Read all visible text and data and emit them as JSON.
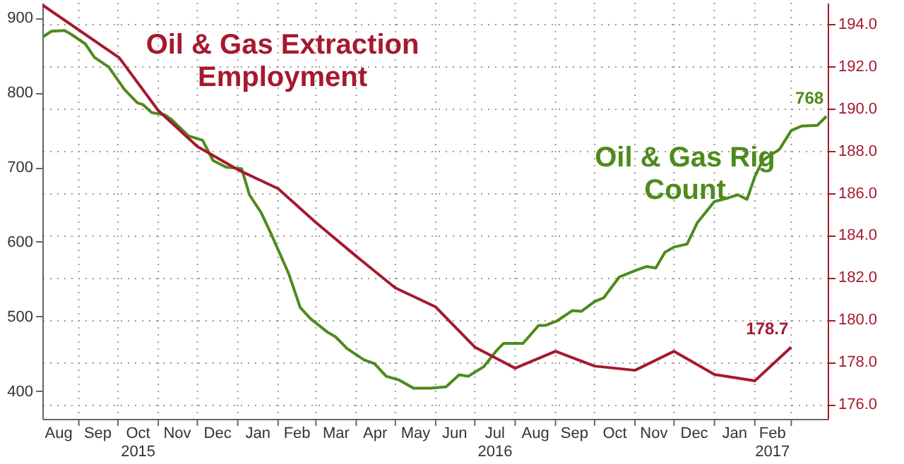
{
  "chart_data": {
    "type": "line",
    "grid": true,
    "xlim": [
      "2015-08-04",
      "2017-03-29"
    ],
    "xticks": [
      {
        "value": "2015-08-16",
        "label": "Aug"
      },
      {
        "value": "2015-09-01",
        "label": null
      },
      {
        "value": "2015-09-15",
        "label": "Sep"
      },
      {
        "value": "2015-10-01",
        "label": null
      },
      {
        "value": "2015-10-16",
        "label": "Oct\n2015"
      },
      {
        "value": "2015-11-01",
        "label": null
      },
      {
        "value": "2015-11-15",
        "label": "Nov"
      },
      {
        "value": "2015-12-01",
        "label": null
      },
      {
        "value": "2015-12-16",
        "label": "Dec"
      },
      {
        "value": "2016-01-01",
        "label": null
      },
      {
        "value": "2016-01-16",
        "label": "Jan"
      },
      {
        "value": "2016-02-01",
        "label": null
      },
      {
        "value": "2016-02-15",
        "label": "Feb"
      },
      {
        "value": "2016-03-01",
        "label": null
      },
      {
        "value": "2016-03-16",
        "label": "Mar"
      },
      {
        "value": "2016-04-01",
        "label": null
      },
      {
        "value": "2016-04-15",
        "label": "Apr"
      },
      {
        "value": "2016-05-01",
        "label": null
      },
      {
        "value": "2016-05-16",
        "label": "May"
      },
      {
        "value": "2016-06-01",
        "label": null
      },
      {
        "value": "2016-06-15",
        "label": "Jun"
      },
      {
        "value": "2016-07-01",
        "label": null
      },
      {
        "value": "2016-07-16",
        "label": "Jul\n2016"
      },
      {
        "value": "2016-08-01",
        "label": null
      },
      {
        "value": "2016-08-16",
        "label": "Aug"
      },
      {
        "value": "2016-09-01",
        "label": null
      },
      {
        "value": "2016-09-15",
        "label": "Sep"
      },
      {
        "value": "2016-10-01",
        "label": null
      },
      {
        "value": "2016-10-16",
        "label": "Oct"
      },
      {
        "value": "2016-11-01",
        "label": null
      },
      {
        "value": "2016-11-15",
        "label": "Nov"
      },
      {
        "value": "2016-12-01",
        "label": null
      },
      {
        "value": "2016-12-16",
        "label": "Dec"
      },
      {
        "value": "2017-01-01",
        "label": null
      },
      {
        "value": "2017-01-16",
        "label": "Jan"
      },
      {
        "value": "2017-02-01",
        "label": null
      },
      {
        "value": "2017-02-14",
        "label": "Feb\n2017"
      },
      {
        "value": "2017-03-01",
        "label": null
      }
    ],
    "ylim": [
      363,
      920
    ],
    "yticks": [
      400,
      500,
      600,
      700,
      800,
      900
    ],
    "y2lim": [
      175.3,
      195
    ],
    "y2ticks": [
      {
        "value": 176,
        "label": "176.0"
      },
      {
        "value": 178,
        "label": "178.0"
      },
      {
        "value": 180,
        "label": "180.0"
      },
      {
        "value": 182,
        "label": "182.0"
      },
      {
        "value": 184,
        "label": "184.0"
      },
      {
        "value": 186,
        "label": "186.0"
      },
      {
        "value": 188,
        "label": "188.0"
      },
      {
        "value": 190,
        "label": "190.0"
      },
      {
        "value": 192,
        "label": "192.0"
      },
      {
        "value": 194,
        "label": "194.0"
      }
    ],
    "series": [
      {
        "name": "Oil & Gas Rig Count",
        "color": "#4e8a1c",
        "x": [
          "2015-08-04",
          "2015-08-11",
          "2015-08-21",
          "2015-08-26",
          "2015-09-06",
          "2015-09-13",
          "2015-09-24",
          "2015-10-06",
          "2015-10-16",
          "2015-10-20",
          "2015-10-27",
          "2015-11-06",
          "2015-11-11",
          "2015-11-24",
          "2015-12-05",
          "2015-12-13",
          "2015-12-23",
          "2016-01-04",
          "2016-01-10",
          "2016-01-19",
          "2016-01-26",
          "2016-02-09",
          "2016-02-18",
          "2016-02-26",
          "2016-03-10",
          "2016-03-16",
          "2016-03-25",
          "2016-04-07",
          "2016-04-15",
          "2016-04-24",
          "2016-05-04",
          "2016-05-15",
          "2016-05-28",
          "2016-06-09",
          "2016-06-19",
          "2016-06-26",
          "2016-07-08",
          "2016-07-18",
          "2016-07-23",
          "2016-08-07",
          "2016-08-19",
          "2016-08-24",
          "2016-09-02",
          "2016-09-14",
          "2016-09-21",
          "2016-10-01",
          "2016-10-08",
          "2016-10-20",
          "2016-11-02",
          "2016-11-10",
          "2016-11-17",
          "2016-11-24",
          "2016-12-01",
          "2016-12-11",
          "2016-12-19",
          "2017-01-01",
          "2017-01-12",
          "2017-01-19",
          "2017-01-26",
          "2017-02-01",
          "2017-02-07",
          "2017-02-20",
          "2017-03-01",
          "2017-03-09",
          "2017-03-21",
          "2017-03-28"
        ],
        "values": [
          874,
          882,
          883,
          878,
          865,
          847,
          834,
          804,
          786,
          784,
          773,
          770,
          764,
          742,
          736,
          709,
          700,
          698,
          663,
          639,
          613,
          558,
          512,
          497,
          479,
          473,
          457,
          442,
          437,
          420,
          415,
          404,
          404,
          406,
          422,
          420,
          433,
          455,
          464,
          464,
          488,
          488,
          494,
          508,
          507,
          520,
          525,
          553,
          562,
          567,
          565,
          586,
          593,
          597,
          626,
          654,
          659,
          663,
          657,
          687,
          709,
          724,
          749,
          755,
          756,
          768
        ],
        "value_labels": [
          null,
          null,
          null,
          null,
          null,
          null,
          null,
          null,
          null,
          null,
          null,
          null,
          null,
          null,
          null,
          null,
          null,
          null,
          null,
          null,
          null,
          null,
          null,
          null,
          null,
          null,
          null,
          null,
          null,
          null,
          null,
          null,
          null,
          null,
          null,
          null,
          null,
          null,
          null,
          null,
          null,
          null,
          null,
          null,
          null,
          null,
          null,
          null,
          null,
          null,
          null,
          null,
          null,
          null,
          null,
          null,
          null,
          null,
          null,
          null,
          null,
          null,
          null,
          null,
          null,
          "768"
        ]
      },
      {
        "name": "Oil & Gas Extraction Employment",
        "color": "#a6192e",
        "axis": "y2",
        "x": [
          "2015-08-04",
          "2015-10-02",
          "2015-11-01",
          "2015-12-01",
          "2016-01-01",
          "2016-02-01",
          "2016-03-01",
          "2016-04-01",
          "2016-05-01",
          "2016-06-01",
          "2016-07-01",
          "2016-08-01",
          "2016-09-01",
          "2016-10-01",
          "2016-11-01",
          "2016-12-01",
          "2017-01-01",
          "2017-02-01",
          "2017-03-01"
        ],
        "values": [
          194.9,
          192.4,
          189.9,
          188.2,
          187.1,
          186.2,
          184.6,
          183.0,
          181.5,
          180.6,
          178.7,
          177.7,
          178.5,
          177.8,
          177.6,
          178.5,
          177.4,
          177.1,
          178.7
        ],
        "value_labels": [
          null,
          null,
          null,
          null,
          null,
          null,
          null,
          null,
          null,
          null,
          null,
          null,
          null,
          null,
          null,
          null,
          null,
          null,
          "178.7"
        ]
      }
    ]
  }
}
